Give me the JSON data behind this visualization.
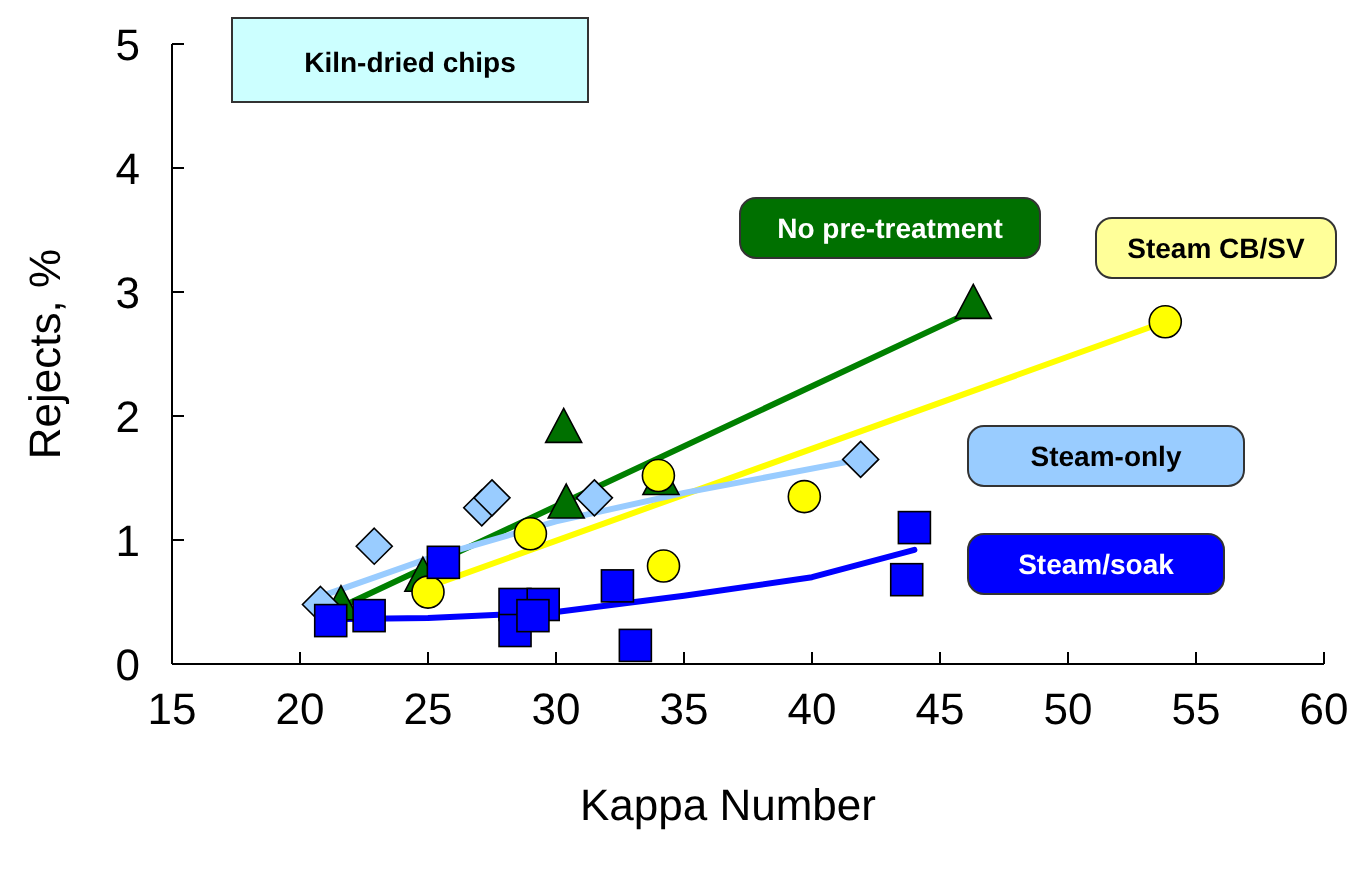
{
  "chart_data": {
    "type": "scatter",
    "title": "Kiln-dried chips",
    "xlabel": "Kappa Number",
    "ylabel": "Rejects, %",
    "xlim": [
      15,
      60
    ],
    "xticks": [
      15,
      20,
      25,
      30,
      35,
      40,
      45,
      50,
      55,
      60
    ],
    "ylim": [
      0,
      5
    ],
    "yticks": [
      0,
      1,
      2,
      3,
      4,
      5
    ],
    "grid": false,
    "series": [
      {
        "type": "line",
        "color": "#008000",
        "marker": "none",
        "x": [
          21.5,
          46.3
        ],
        "values": [
          0.45,
          2.85
        ]
      },
      {
        "type": "line",
        "color": "#ffff00",
        "marker": "none",
        "x": [
          25.1,
          53.8
        ],
        "values": [
          0.63,
          2.76
        ]
      },
      {
        "type": "line",
        "color": "#99ccff",
        "marker": "none",
        "x": [
          21,
          25,
          30,
          35,
          41.9
        ],
        "values": [
          0.56,
          0.85,
          1.15,
          1.38,
          1.65
        ]
      },
      {
        "type": "line",
        "color": "#0000ff",
        "marker": "none",
        "x": [
          21,
          25,
          30,
          35,
          40,
          44
        ],
        "values": [
          0.36,
          0.37,
          0.42,
          0.55,
          0.7,
          0.92
        ]
      },
      {
        "type": "scatter",
        "name": "No pre-treatment",
        "color": "#007000",
        "marker": "triangle",
        "x": [
          21.6,
          24.8,
          30.3,
          30.4,
          34.1,
          46.3
        ],
        "values": [
          0.47,
          0.7,
          1.9,
          1.29,
          1.48,
          2.9
        ]
      },
      {
        "type": "scatter",
        "name": "Steam CB/SV",
        "color": "#ffff00",
        "marker": "circle",
        "x": [
          25,
          29,
          34,
          34.2,
          39.7,
          53.8
        ],
        "values": [
          0.58,
          1.05,
          1.52,
          0.79,
          1.35,
          2.76
        ]
      },
      {
        "type": "scatter",
        "name": "Steam-only",
        "color": "#99ccff",
        "marker": "diamond",
        "x": [
          20.8,
          22.9,
          27.1,
          27.5,
          31.5,
          41.9
        ],
        "values": [
          0.48,
          0.95,
          1.26,
          1.34,
          1.34,
          1.65
        ]
      },
      {
        "type": "scatter",
        "name": "Steam/soak",
        "color": "#0000ff",
        "marker": "square",
        "x": [
          21.2,
          22.7,
          25.6,
          28.4,
          28.4,
          29.5,
          29.1,
          32.4,
          33.1,
          44,
          43.7
        ],
        "values": [
          0.35,
          0.39,
          0.82,
          0.48,
          0.27,
          0.48,
          0.39,
          0.63,
          0.15,
          1.1,
          0.68
        ]
      }
    ]
  }
}
